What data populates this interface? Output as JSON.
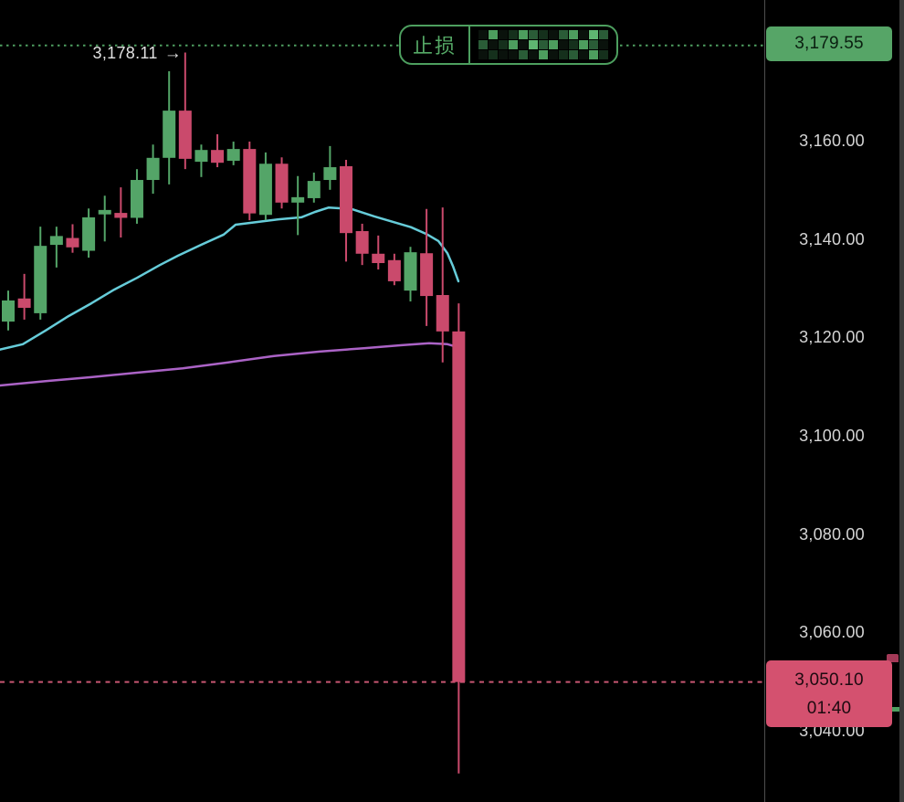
{
  "colors": {
    "background": "#000000",
    "candle_up": "#54a568",
    "candle_down": "#ca4a6c",
    "ma_fast_line": "#66ccd9",
    "ma_slow_line": "#ab63c6",
    "stop_line": "#4e9e60",
    "current_price_line": "#c75672",
    "axis_text": "#d4d4d4",
    "stop_label_bg": "#56a567",
    "current_label_bg": "#d4516f",
    "badge_green": "#4d9f5f"
  },
  "stop_loss": {
    "badge_label": "止损",
    "price_label": "3,179.55",
    "price": 3179.55,
    "redacted_mosaic": [
      "#0a120c",
      "#4d9d5e",
      "#0a120c",
      "#15301c",
      "#4d9d5e",
      "#2a5c37",
      "#15301c",
      "#0a120c",
      "#2a5c37",
      "#4d9d5e",
      "#0a120c",
      "#5fb571",
      "#2a5c37",
      "#2a5c37",
      "#0a120c",
      "#15301c",
      "#4d9d5e",
      "#0a120c",
      "#5fb571",
      "#2a5c37",
      "#4d9d5e",
      "#0a120c",
      "#15301c",
      "#4d9d5e",
      "#2a5c37",
      "#0a120c",
      "#0a120c",
      "#15301c",
      "#0a120c",
      "#0a120c",
      "#2a5c37",
      "#0a120c",
      "#4d9d5e",
      "#0a120c",
      "#15301c",
      "#2a5c37",
      "#0a120c",
      "#4d9d5e",
      "#15301c"
    ]
  },
  "high_marker": {
    "label": "3,178.11",
    "arrow_glyph": "→",
    "price": 3178.11
  },
  "current_price": {
    "price_label": "3,050.10",
    "countdown": "01:40",
    "price": 3050.1
  },
  "y_axis": {
    "ticks": [
      {
        "label": "3,160.00",
        "price": 3160
      },
      {
        "label": "3,140.00",
        "price": 3140
      },
      {
        "label": "3,120.00",
        "price": 3120
      },
      {
        "label": "3,100.00",
        "price": 3100
      },
      {
        "label": "3,080.00",
        "price": 3080
      },
      {
        "label": "3,060.00",
        "price": 3060
      },
      {
        "label": "3,040.00",
        "price": 3040
      }
    ]
  },
  "chart_data": {
    "type": "candlestick",
    "title": "",
    "ylim": [
      3025.7,
      3188.8
    ],
    "grid": false,
    "legend": false,
    "overlays": {
      "stop_line_price": 3179.55,
      "current_price_line": 3050.1,
      "high_annotation": 3178.11
    },
    "candles": [
      {
        "o": 3123.4,
        "h": 3129.7,
        "l": 3121.6,
        "c": 3127.7
      },
      {
        "o": 3128.1,
        "h": 3133.1,
        "l": 3123.8,
        "c": 3126.2
      },
      {
        "o": 3125.1,
        "h": 3142.7,
        "l": 3123.8,
        "c": 3138.8
      },
      {
        "o": 3139.0,
        "h": 3142.7,
        "l": 3134.4,
        "c": 3140.8
      },
      {
        "o": 3140.4,
        "h": 3143.2,
        "l": 3137.4,
        "c": 3138.5
      },
      {
        "o": 3137.8,
        "h": 3146.4,
        "l": 3136.4,
        "c": 3144.6
      },
      {
        "o": 3145.2,
        "h": 3149.0,
        "l": 3139.7,
        "c": 3146.1
      },
      {
        "o": 3145.5,
        "h": 3150.7,
        "l": 3140.5,
        "c": 3144.5
      },
      {
        "o": 3144.5,
        "h": 3154.4,
        "l": 3143.3,
        "c": 3152.2
      },
      {
        "o": 3152.2,
        "h": 3159.4,
        "l": 3149.4,
        "c": 3156.7
      },
      {
        "o": 3156.7,
        "h": 3174.3,
        "l": 3151.3,
        "c": 3166.3
      },
      {
        "o": 3166.3,
        "h": 3178.11,
        "l": 3154.4,
        "c": 3156.5
      },
      {
        "o": 3155.9,
        "h": 3159.4,
        "l": 3152.8,
        "c": 3158.3
      },
      {
        "o": 3158.3,
        "h": 3161.5,
        "l": 3154.8,
        "c": 3155.7
      },
      {
        "o": 3156.1,
        "h": 3160.0,
        "l": 3155.2,
        "c": 3158.5
      },
      {
        "o": 3158.5,
        "h": 3160.0,
        "l": 3144.0,
        "c": 3145.4
      },
      {
        "o": 3145.1,
        "h": 3157.8,
        "l": 3144.0,
        "c": 3155.5
      },
      {
        "o": 3155.5,
        "h": 3156.8,
        "l": 3146.4,
        "c": 3147.6
      },
      {
        "o": 3147.6,
        "h": 3153.0,
        "l": 3141.0,
        "c": 3148.7
      },
      {
        "o": 3148.5,
        "h": 3153.7,
        "l": 3147.6,
        "c": 3152.0
      },
      {
        "o": 3152.2,
        "h": 3159.1,
        "l": 3150.2,
        "c": 3154.8
      },
      {
        "o": 3155.0,
        "h": 3156.3,
        "l": 3135.6,
        "c": 3141.4
      },
      {
        "o": 3141.8,
        "h": 3143.3,
        "l": 3134.9,
        "c": 3137.2
      },
      {
        "o": 3137.2,
        "h": 3140.9,
        "l": 3134.0,
        "c": 3135.3
      },
      {
        "o": 3135.9,
        "h": 3137.2,
        "l": 3130.8,
        "c": 3131.6
      },
      {
        "o": 3129.7,
        "h": 3138.6,
        "l": 3127.5,
        "c": 3137.5
      },
      {
        "o": 3137.3,
        "h": 3146.3,
        "l": 3122.5,
        "c": 3128.6
      },
      {
        "o": 3128.8,
        "h": 3146.6,
        "l": 3115.1,
        "c": 3121.4
      },
      {
        "o": 3121.4,
        "h": 3127.1,
        "l": 3031.5,
        "c": 3050.1
      }
    ],
    "series": [
      {
        "name": "ma-fast",
        "color": "#66ccd9",
        "points": [
          [
            0,
            3117.7
          ],
          [
            25,
            3118.8
          ],
          [
            50,
            3121.6
          ],
          [
            75,
            3124.5
          ],
          [
            100,
            3127.1
          ],
          [
            125,
            3129.9
          ],
          [
            150,
            3132.3
          ],
          [
            175,
            3134.9
          ],
          [
            195,
            3136.8
          ],
          [
            220,
            3139.0
          ],
          [
            245,
            3141.1
          ],
          [
            258,
            3143.1
          ],
          [
            275,
            3143.5
          ],
          [
            305,
            3144.2
          ],
          [
            330,
            3144.6
          ],
          [
            345,
            3145.7
          ],
          [
            360,
            3146.6
          ],
          [
            385,
            3146.3
          ],
          [
            410,
            3144.8
          ],
          [
            430,
            3143.7
          ],
          [
            450,
            3142.6
          ],
          [
            467,
            3141.2
          ],
          [
            480,
            3139.8
          ],
          [
            490,
            3137.3
          ],
          [
            496,
            3134.7
          ],
          [
            502,
            3131.6
          ]
        ]
      },
      {
        "name": "ma-slow",
        "color": "#ab63c6",
        "points": [
          [
            0,
            3110.4
          ],
          [
            50,
            3111.3
          ],
          [
            100,
            3112.1
          ],
          [
            150,
            3113.0
          ],
          [
            200,
            3113.9
          ],
          [
            250,
            3115.1
          ],
          [
            300,
            3116.4
          ],
          [
            350,
            3117.3
          ],
          [
            400,
            3118.0
          ],
          [
            440,
            3118.6
          ],
          [
            470,
            3119.0
          ],
          [
            490,
            3118.8
          ],
          [
            505,
            3118.0
          ]
        ]
      }
    ]
  }
}
